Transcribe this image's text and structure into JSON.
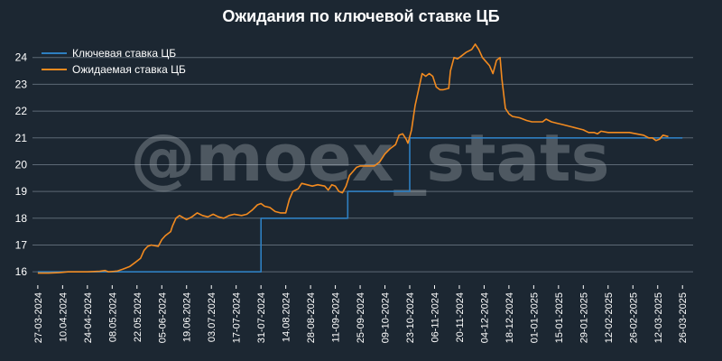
{
  "chart_data": {
    "type": "line",
    "title": "Ожидания по ключевой ставке ЦБ",
    "watermark": "@moex_stats",
    "ylim": [
      15.5,
      24.8
    ],
    "yticks": [
      16,
      17,
      18,
      19,
      20,
      21,
      22,
      23,
      24
    ],
    "grid": "horizontal",
    "legend_position": "top-left",
    "x_tick_labels": [
      "27-03-2024",
      "10.04.2024",
      "24-04-2024",
      "08.05.2024",
      "22.05.2024",
      "05-06-2024",
      "19.06.2024",
      "03.07.2024",
      "17-07-2024",
      "31-07-2024",
      "14.08.2024",
      "28-08-2024",
      "11-09-2024",
      "25-09-2024",
      "09-10-2024",
      "23-10-2024",
      "06-11-2024",
      "20-11-2024",
      "04-12-2024",
      "18-12-2024",
      "01-01-2025",
      "15-01-2025",
      "29-01-2025",
      "12-02-2025",
      "26-02-2025",
      "12-03-2025",
      "26-03-2025"
    ],
    "x_range_days": [
      -3,
      370
    ],
    "series": [
      {
        "name": "Ключевая ставка ЦБ",
        "color": "#2e7fc1",
        "step": true,
        "points": [
          [
            0,
            16
          ],
          [
            124,
            16
          ],
          [
            126,
            18
          ],
          [
            173,
            18
          ],
          [
            175,
            19
          ],
          [
            208,
            19
          ],
          [
            210,
            21
          ],
          [
            364,
            21
          ]
        ]
      },
      {
        "name": "Ожидаемая ставка ЦБ",
        "color": "#f28a1f",
        "step": false,
        "points": [
          [
            0,
            15.95
          ],
          [
            6,
            15.95
          ],
          [
            12,
            15.97
          ],
          [
            17,
            16.0
          ],
          [
            28,
            16.0
          ],
          [
            35,
            16.02
          ],
          [
            38,
            16.05
          ],
          [
            40,
            16.0
          ],
          [
            45,
            16.03
          ],
          [
            48,
            16.1
          ],
          [
            52,
            16.2
          ],
          [
            55,
            16.35
          ],
          [
            58,
            16.5
          ],
          [
            60,
            16.8
          ],
          [
            62,
            16.95
          ],
          [
            64,
            17.0
          ],
          [
            68,
            16.95
          ],
          [
            70,
            17.2
          ],
          [
            72,
            17.35
          ],
          [
            75,
            17.5
          ],
          [
            76,
            17.7
          ],
          [
            78,
            18.0
          ],
          [
            80,
            18.1
          ],
          [
            84,
            17.95
          ],
          [
            87,
            18.05
          ],
          [
            90,
            18.2
          ],
          [
            93,
            18.1
          ],
          [
            96,
            18.05
          ],
          [
            99,
            18.15
          ],
          [
            102,
            18.05
          ],
          [
            105,
            18.0
          ],
          [
            108,
            18.1
          ],
          [
            111,
            18.15
          ],
          [
            115,
            18.1
          ],
          [
            118,
            18.15
          ],
          [
            121,
            18.3
          ],
          [
            124,
            18.5
          ],
          [
            126,
            18.55
          ],
          [
            128,
            18.45
          ],
          [
            131,
            18.4
          ],
          [
            134,
            18.25
          ],
          [
            137,
            18.2
          ],
          [
            140,
            18.2
          ],
          [
            142,
            18.7
          ],
          [
            144,
            19.0
          ],
          [
            147,
            19.1
          ],
          [
            149,
            19.3
          ],
          [
            152,
            19.25
          ],
          [
            155,
            19.2
          ],
          [
            158,
            19.25
          ],
          [
            162,
            19.2
          ],
          [
            164,
            19.05
          ],
          [
            166,
            19.25
          ],
          [
            168,
            19.2
          ],
          [
            170,
            19.0
          ],
          [
            172,
            18.95
          ],
          [
            174,
            19.2
          ],
          [
            176,
            19.6
          ],
          [
            178,
            19.75
          ],
          [
            180,
            19.9
          ],
          [
            182,
            19.95
          ],
          [
            186,
            19.95
          ],
          [
            190,
            19.95
          ],
          [
            193,
            20.1
          ],
          [
            196,
            20.4
          ],
          [
            199,
            20.6
          ],
          [
            202,
            20.75
          ],
          [
            204,
            21.1
          ],
          [
            206,
            21.15
          ],
          [
            208,
            20.95
          ],
          [
            209,
            20.8
          ],
          [
            211,
            21.3
          ],
          [
            213,
            22.2
          ],
          [
            215,
            22.8
          ],
          [
            217,
            23.4
          ],
          [
            219,
            23.3
          ],
          [
            221,
            23.4
          ],
          [
            223,
            23.3
          ],
          [
            225,
            22.9
          ],
          [
            227,
            22.8
          ],
          [
            229,
            22.8
          ],
          [
            232,
            22.85
          ],
          [
            233,
            23.5
          ],
          [
            235,
            24.0
          ],
          [
            237,
            23.95
          ],
          [
            239,
            24.05
          ],
          [
            242,
            24.2
          ],
          [
            245,
            24.3
          ],
          [
            247,
            24.5
          ],
          [
            249,
            24.3
          ],
          [
            251,
            24.0
          ],
          [
            253,
            23.85
          ],
          [
            255,
            23.7
          ],
          [
            257,
            23.4
          ],
          [
            259,
            23.9
          ],
          [
            261,
            24.0
          ],
          [
            262,
            23.2
          ],
          [
            264,
            22.1
          ],
          [
            266,
            21.9
          ],
          [
            268,
            21.8
          ],
          [
            272,
            21.75
          ],
          [
            276,
            21.65
          ],
          [
            279,
            21.6
          ],
          [
            282,
            21.6
          ],
          [
            285,
            21.6
          ],
          [
            287,
            21.7
          ],
          [
            290,
            21.6
          ],
          [
            293,
            21.55
          ],
          [
            296,
            21.5
          ],
          [
            299,
            21.45
          ],
          [
            302,
            21.4
          ],
          [
            305,
            21.35
          ],
          [
            308,
            21.3
          ],
          [
            311,
            21.2
          ],
          [
            314,
            21.2
          ],
          [
            316,
            21.15
          ],
          [
            318,
            21.25
          ],
          [
            322,
            21.2
          ],
          [
            326,
            21.2
          ],
          [
            330,
            21.2
          ],
          [
            334,
            21.2
          ],
          [
            338,
            21.15
          ],
          [
            342,
            21.1
          ],
          [
            345,
            21.0
          ],
          [
            347,
            21.0
          ],
          [
            349,
            20.9
          ],
          [
            351,
            20.95
          ],
          [
            353,
            21.1
          ],
          [
            356,
            21.05
          ]
        ]
      }
    ]
  }
}
